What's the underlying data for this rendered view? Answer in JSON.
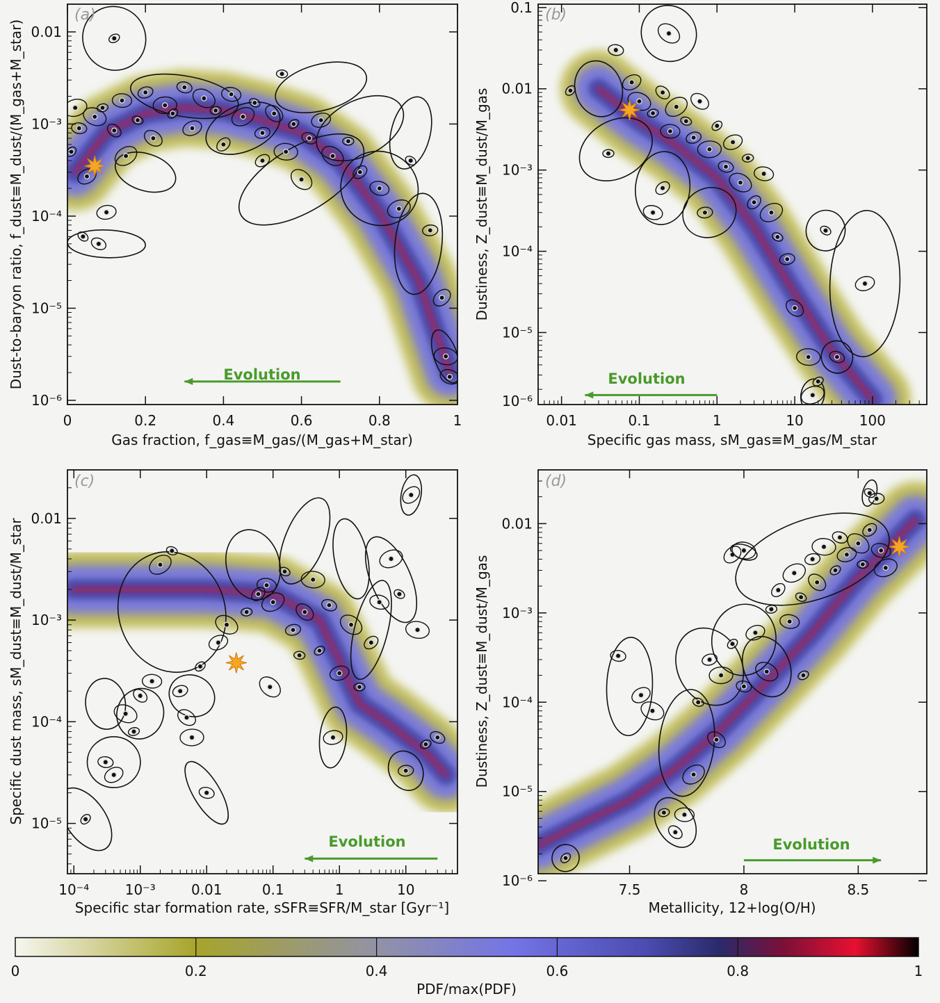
{
  "chart_data": [
    {
      "id": "a",
      "type": "scatter",
      "panel_label": "(a)",
      "xlabel": "Gas fraction, f_gas≡M_gas/(M_gas+M_star)",
      "ylabel": "Dust-to-baryon ratio, f_dust≡M_dust/(M_gas+M_star)",
      "xscale": "linear",
      "yscale": "log",
      "xlim": [
        0,
        1
      ],
      "ylim": [
        9e-07,
        0.02
      ],
      "xticks": [
        0,
        0.2,
        0.4,
        0.6,
        0.8,
        1
      ],
      "xtick_labels": [
        "0",
        "0.2",
        "0.4",
        "0.6",
        "0.8",
        "1"
      ],
      "yticks": [
        1e-06,
        1e-05,
        0.0001,
        0.001,
        0.01
      ],
      "ytick_labels": [
        "10⁻⁶",
        "10⁻⁵",
        "10⁻⁴",
        "10⁻³",
        "0.01"
      ],
      "annotation": "Evolution",
      "evolution_arrow": {
        "from": 0.7,
        "to": 0.3,
        "y": 1.6e-06
      },
      "star": {
        "x": 0.07,
        "y": 0.00035
      },
      "density_ridge": [
        [
          0.02,
          0.0003
        ],
        [
          0.1,
          0.0008
        ],
        [
          0.2,
          0.0013
        ],
        [
          0.3,
          0.0015
        ],
        [
          0.4,
          0.0014
        ],
        [
          0.5,
          0.0011
        ],
        [
          0.6,
          0.0008
        ],
        [
          0.7,
          0.0004
        ],
        [
          0.8,
          0.00011
        ],
        [
          0.9,
          2e-05
        ],
        [
          0.98,
          2e-06
        ]
      ],
      "points": [
        [
          0.01,
          0.0005
        ],
        [
          0.03,
          0.0009
        ],
        [
          0.05,
          0.00027
        ],
        [
          0.07,
          0.0012
        ],
        [
          0.09,
          0.0015
        ],
        [
          0.12,
          0.00085
        ],
        [
          0.14,
          0.0018
        ],
        [
          0.15,
          0.00045
        ],
        [
          0.18,
          0.0011
        ],
        [
          0.2,
          0.0022
        ],
        [
          0.22,
          0.0007
        ],
        [
          0.25,
          0.0016
        ],
        [
          0.27,
          0.0013
        ],
        [
          0.3,
          0.0025
        ],
        [
          0.32,
          0.0009
        ],
        [
          0.35,
          0.0019
        ],
        [
          0.38,
          0.0014
        ],
        [
          0.4,
          0.0006
        ],
        [
          0.42,
          0.0021
        ],
        [
          0.45,
          0.0012
        ],
        [
          0.48,
          0.0017
        ],
        [
          0.5,
          0.0008
        ],
        [
          0.53,
          0.0013
        ],
        [
          0.56,
          0.0005
        ],
        [
          0.58,
          0.001
        ],
        [
          0.62,
          0.0007
        ],
        [
          0.65,
          0.0011
        ],
        [
          0.68,
          0.00045
        ],
        [
          0.72,
          0.00065
        ],
        [
          0.75,
          0.0003
        ],
        [
          0.8,
          0.0002
        ],
        [
          0.85,
          0.00012
        ],
        [
          0.88,
          0.0004
        ],
        [
          0.93,
          7e-05
        ],
        [
          0.96,
          1.3e-05
        ],
        [
          0.97,
          3e-06
        ],
        [
          0.12,
          0.0085
        ],
        [
          0.08,
          5e-05
        ],
        [
          0.1,
          0.00011
        ],
        [
          0.6,
          0.00025
        ],
        [
          0.55,
          0.0035
        ],
        [
          0.5,
          0.0004
        ],
        [
          0.98,
          1.8e-06
        ],
        [
          0.02,
          0.0015
        ],
        [
          0.04,
          6e-05
        ]
      ],
      "ellipses": [
        [
          0.12,
          0.0085,
          0.08,
          0.35
        ],
        [
          0.1,
          5e-05,
          0.1,
          0.15
        ],
        [
          0.6,
          0.00025,
          0.18,
          0.35
        ],
        [
          0.9,
          5e-05,
          0.06,
          0.55
        ],
        [
          0.75,
          0.0009,
          0.12,
          0.3
        ],
        [
          0.3,
          0.002,
          0.14,
          0.22
        ],
        [
          0.45,
          0.0009,
          0.1,
          0.25
        ],
        [
          0.88,
          0.0008,
          0.05,
          0.4
        ],
        [
          0.97,
          3e-06,
          0.03,
          0.3
        ],
        [
          0.2,
          0.0003,
          0.08,
          0.2
        ],
        [
          0.65,
          0.0025,
          0.12,
          0.25
        ],
        [
          0.8,
          0.0002,
          0.1,
          0.4
        ]
      ]
    },
    {
      "id": "b",
      "type": "scatter",
      "panel_label": "(b)",
      "xlabel": "Specific gas mass, sM_gas≡M_gas/M_star",
      "ylabel": "Dustiness, Z_dust≡M_dust/M_gas",
      "xscale": "log",
      "yscale": "log",
      "xlim": [
        0.005,
        500
      ],
      "ylim": [
        1.3e-06,
        0.11
      ],
      "xticks": [
        0.01,
        0.1,
        1,
        10,
        100
      ],
      "xtick_labels": [
        "0.01",
        "0.1",
        "1",
        "10",
        "100"
      ],
      "yticks": [
        1e-05,
        0.0001,
        0.001,
        0.01,
        0.1
      ],
      "ytick_labels": [
        "10⁻⁵",
        "10⁻⁴",
        "10⁻³",
        "0.01",
        "0.1"
      ],
      "extra_ytick_label": "10⁻⁶",
      "annotation": "Evolution",
      "evolution_arrow": {
        "from": 1,
        "to": 0.02,
        "y": 1.7e-06
      },
      "star": {
        "x": 0.075,
        "y": 0.0055
      },
      "density_ridge": [
        [
          0.03,
          0.01
        ],
        [
          0.1,
          0.004
        ],
        [
          0.3,
          0.002
        ],
        [
          1,
          0.0008
        ],
        [
          3,
          0.0002
        ],
        [
          10,
          3e-05
        ],
        [
          30,
          6e-06
        ],
        [
          100,
          1.5e-06
        ]
      ],
      "points": [
        [
          0.013,
          0.0095
        ],
        [
          0.05,
          0.03
        ],
        [
          0.08,
          0.012
        ],
        [
          0.1,
          0.007
        ],
        [
          0.15,
          0.005
        ],
        [
          0.2,
          0.009
        ],
        [
          0.25,
          0.003
        ],
        [
          0.3,
          0.006
        ],
        [
          0.4,
          0.004
        ],
        [
          0.5,
          0.0025
        ],
        [
          0.6,
          0.007
        ],
        [
          0.8,
          0.0018
        ],
        [
          1,
          0.0035
        ],
        [
          1.3,
          0.0011
        ],
        [
          1.6,
          0.0022
        ],
        [
          2,
          0.0007
        ],
        [
          2.5,
          0.0014
        ],
        [
          3,
          0.0004
        ],
        [
          4,
          0.0009
        ],
        [
          5,
          0.0003
        ],
        [
          6,
          0.00015
        ],
        [
          8,
          8e-05
        ],
        [
          10,
          2e-05
        ],
        [
          15,
          5e-06
        ],
        [
          20,
          2.5e-06
        ],
        [
          35,
          5e-06
        ],
        [
          80,
          4e-05
        ],
        [
          0.24,
          0.048
        ],
        [
          0.04,
          0.0016
        ],
        [
          0.2,
          0.0006
        ],
        [
          0.15,
          0.0003
        ],
        [
          17,
          1.7e-06
        ],
        [
          25,
          0.00018
        ],
        [
          0.7,
          0.0003
        ]
      ],
      "ellipses": [
        [
          0.24,
          0.048,
          0.35,
          0.35
        ],
        [
          80,
          4e-05,
          0.45,
          0.9
        ],
        [
          0.05,
          0.0018,
          0.5,
          0.35
        ],
        [
          0.2,
          0.0006,
          0.35,
          0.45
        ],
        [
          0.8,
          0.0003,
          0.35,
          0.3
        ],
        [
          17,
          1.7e-06,
          0.15,
          0.2
        ],
        [
          35,
          5e-06,
          0.2,
          0.2
        ],
        [
          25,
          0.00018,
          0.25,
          0.25
        ],
        [
          0.03,
          0.01,
          0.3,
          0.35
        ]
      ]
    },
    {
      "id": "c",
      "type": "scatter",
      "panel_label": "(c)",
      "xlabel": "Specific star formation rate, sSFR≡SFR/M_star [Gyr⁻¹]",
      "ylabel": "Specific dust mass, sM_dust≡M_dust/M_star",
      "xscale": "log",
      "yscale": "log",
      "xlim": [
        8e-05,
        60
      ],
      "ylim": [
        3.2e-06,
        0.03
      ],
      "xticks": [
        0.0001,
        0.001,
        0.01,
        0.1,
        1,
        10
      ],
      "xtick_labels": [
        "10⁻⁴",
        "10⁻³",
        "0.01",
        "0.1",
        "1",
        "10"
      ],
      "yticks": [
        1e-05,
        0.0001,
        0.001,
        0.01
      ],
      "ytick_labels": [
        "10⁻⁵",
        "10⁻⁴",
        "10⁻³",
        "0.01"
      ],
      "annotation": "Evolution",
      "evolution_arrow": {
        "from": 30,
        "to": 0.3,
        "y": 4.5e-06
      },
      "star": {
        "x": 0.028,
        "y": 0.00038
      },
      "density_ridge": [
        [
          0.0001,
          0.002
        ],
        [
          0.001,
          0.002
        ],
        [
          0.01,
          0.002
        ],
        [
          0.1,
          0.0018
        ],
        [
          0.5,
          0.001
        ],
        [
          1,
          0.0004
        ],
        [
          2,
          0.00015
        ],
        [
          5,
          0.0001
        ],
        [
          20,
          5e-05
        ],
        [
          40,
          3e-05
        ]
      ],
      "points": [
        [
          0.00015,
          1.1e-05
        ],
        [
          0.0003,
          4e-05
        ],
        [
          0.0004,
          3e-05
        ],
        [
          0.0006,
          0.00012
        ],
        [
          0.0008,
          8e-05
        ],
        [
          0.001,
          0.00018
        ],
        [
          0.0015,
          0.00025
        ],
        [
          0.002,
          0.0035
        ],
        [
          0.003,
          0.0048
        ],
        [
          0.004,
          0.0002
        ],
        [
          0.005,
          0.00011
        ],
        [
          0.006,
          7e-05
        ],
        [
          0.008,
          0.00035
        ],
        [
          0.01,
          2e-05
        ],
        [
          0.015,
          0.0006
        ],
        [
          0.02,
          0.0009
        ],
        [
          0.04,
          0.0012
        ],
        [
          0.06,
          0.0018
        ],
        [
          0.08,
          0.0022
        ],
        [
          0.1,
          0.0015
        ],
        [
          0.15,
          0.003
        ],
        [
          0.2,
          0.0008
        ],
        [
          0.3,
          0.0012
        ],
        [
          0.4,
          0.0025
        ],
        [
          0.5,
          0.0005
        ],
        [
          0.7,
          0.0014
        ],
        [
          1,
          0.0003
        ],
        [
          1.5,
          0.0009
        ],
        [
          2,
          0.00022
        ],
        [
          3,
          0.0006
        ],
        [
          4,
          0.0015
        ],
        [
          6,
          0.004
        ],
        [
          8,
          0.0018
        ],
        [
          10,
          3.3e-05
        ],
        [
          12,
          0.017
        ],
        [
          15,
          0.0008
        ],
        [
          20,
          6e-05
        ],
        [
          30,
          7e-05
        ],
        [
          0.8,
          7e-05
        ],
        [
          0.09,
          0.00022
        ],
        [
          0.25,
          0.00045
        ]
      ],
      "ellipses": [
        [
          0.00015,
          1.1e-05,
          0.3,
          0.35
        ],
        [
          0.0004,
          4e-05,
          0.4,
          0.25
        ],
        [
          0.01,
          2e-05,
          0.2,
          0.35
        ],
        [
          0.8,
          7e-05,
          0.2,
          0.3
        ],
        [
          10,
          3.3e-05,
          0.25,
          0.2
        ],
        [
          12,
          0.017,
          0.15,
          0.2
        ],
        [
          6,
          0.0025,
          0.3,
          0.45
        ],
        [
          3,
          0.0008,
          0.25,
          0.5
        ],
        [
          0.003,
          0.0012,
          0.8,
          0.6
        ],
        [
          0.001,
          0.00012,
          0.35,
          0.25
        ],
        [
          0.05,
          0.0035,
          0.4,
          0.35
        ],
        [
          0.3,
          0.006,
          0.3,
          0.45
        ],
        [
          1.5,
          0.004,
          0.25,
          0.4
        ],
        [
          0.006,
          0.00018,
          0.35,
          0.2
        ],
        [
          0.0003,
          0.00015,
          0.3,
          0.25
        ]
      ]
    },
    {
      "id": "d",
      "type": "scatter",
      "panel_label": "(d)",
      "xlabel": "Metallicity, 12+log(O/H)",
      "ylabel": "Dustiness, Z_dust≡M_dust/M_gas",
      "xscale": "linear",
      "yscale": "log",
      "xlim": [
        7.1,
        8.8
      ],
      "ylim": [
        1.2e-06,
        0.04
      ],
      "xticks": [
        7.5,
        8,
        8.5
      ],
      "xtick_labels": [
        "7.5",
        "8",
        "8.5"
      ],
      "yticks": [
        1e-06,
        1e-05,
        0.0001,
        0.001,
        0.01
      ],
      "ytick_labels": [
        "10⁻⁶",
        "10⁻⁵",
        "10⁻⁴",
        "10⁻³",
        "0.01"
      ],
      "annotation": "Evolution",
      "evolution_arrow": {
        "from": 8.0,
        "to": 8.6,
        "y": 1.7e-06
      },
      "star": {
        "x": 8.68,
        "y": 0.0055
      },
      "density_ridge": [
        [
          7.1,
          2.5e-06
        ],
        [
          7.3,
          4.5e-06
        ],
        [
          7.5,
          8e-06
        ],
        [
          7.7,
          1.8e-05
        ],
        [
          7.9,
          5e-05
        ],
        [
          8.1,
          0.00017
        ],
        [
          8.3,
          0.0006
        ],
        [
          8.5,
          0.0025
        ],
        [
          8.65,
          0.006
        ],
        [
          8.75,
          0.011
        ]
      ],
      "points": [
        [
          7.22,
          1.8e-06
        ],
        [
          7.45,
          0.00033
        ],
        [
          7.55,
          0.00012
        ],
        [
          7.6,
          8e-05
        ],
        [
          7.65,
          5.8e-06
        ],
        [
          7.7,
          3.5e-06
        ],
        [
          7.74,
          5.5e-06
        ],
        [
          7.78,
          1.55e-05
        ],
        [
          7.8,
          0.0001
        ],
        [
          7.85,
          0.0003
        ],
        [
          7.88,
          3.8e-05
        ],
        [
          7.9,
          0.0002
        ],
        [
          7.95,
          0.00045
        ],
        [
          8.0,
          0.00015
        ],
        [
          8.05,
          0.0006
        ],
        [
          8.1,
          0.00022
        ],
        [
          8.12,
          0.0011
        ],
        [
          8.15,
          0.0018
        ],
        [
          8.2,
          0.0008
        ],
        [
          8.22,
          0.0028
        ],
        [
          8.25,
          0.0015
        ],
        [
          8.3,
          0.004
        ],
        [
          8.32,
          0.0022
        ],
        [
          8.35,
          0.0055
        ],
        [
          8.4,
          0.003
        ],
        [
          8.42,
          0.007
        ],
        [
          8.45,
          0.0045
        ],
        [
          8.5,
          0.006
        ],
        [
          8.52,
          0.0035
        ],
        [
          8.55,
          0.0085
        ],
        [
          8.6,
          0.005
        ],
        [
          8.62,
          0.0032
        ],
        [
          8.55,
          0.022
        ],
        [
          8.58,
          0.019
        ],
        [
          7.95,
          0.0045
        ],
        [
          8.0,
          0.005
        ],
        [
          8.26,
          0.0002
        ]
      ],
      "ellipses": [
        [
          7.22,
          1.8e-06,
          0.06,
          0.15
        ],
        [
          7.5,
          0.00015,
          0.1,
          0.55
        ],
        [
          7.7,
          4.5e-06,
          0.08,
          0.3
        ],
        [
          7.75,
          3.5e-05,
          0.12,
          0.6
        ],
        [
          7.85,
          0.00025,
          0.14,
          0.45
        ],
        [
          8.0,
          0.0005,
          0.14,
          0.4
        ],
        [
          8.1,
          0.00025,
          0.1,
          0.35
        ],
        [
          8.55,
          0.022,
          0.03,
          0.15
        ],
        [
          8.3,
          0.004,
          0.35,
          0.45
        ],
        [
          8.0,
          0.0048,
          0.06,
          0.08
        ]
      ]
    },
    {
      "type": "colorbar",
      "label": "PDF/max(PDF)",
      "range": [
        0,
        1
      ],
      "ticks": [
        0,
        0.2,
        0.4,
        0.6,
        0.8,
        1
      ],
      "tick_labels": [
        "0",
        "0.2",
        "0.4",
        "0.6",
        "0.8",
        "1"
      ],
      "colors": [
        "#f4f5f3",
        "#a8a830",
        "#9494d6",
        "#7070e0",
        "#4a4aa8",
        "#202060",
        "#d81030",
        "#000000"
      ]
    }
  ]
}
